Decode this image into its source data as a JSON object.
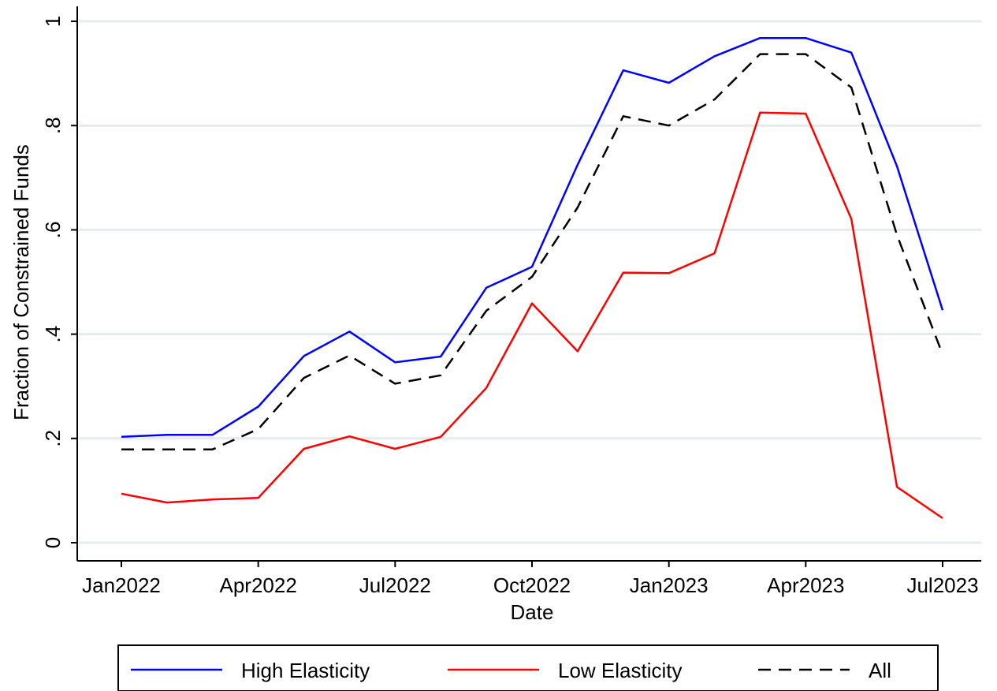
{
  "chart_data": {
    "type": "line",
    "xlabel": "Date",
    "ylabel": "Fraction of Constrained Funds",
    "x": [
      "Jan2022",
      "Feb2022",
      "Mar2022",
      "Apr2022",
      "May2022",
      "Jun2022",
      "Jul2022",
      "Aug2022",
      "Sep2022",
      "Oct2022",
      "Nov2022",
      "Dec2022",
      "Jan2023",
      "Feb2023",
      "Mar2023",
      "Apr2023",
      "May2023",
      "Jun2023",
      "Jul2023"
    ],
    "x_tick_labels": [
      "Jan2022",
      "Apr2022",
      "Jul2022",
      "Oct2022",
      "Jan2023",
      "Apr2023",
      "Jul2023"
    ],
    "y_tick_labels": [
      "0",
      ".2",
      ".4",
      ".6",
      ".8",
      "1"
    ],
    "ylim": [
      0,
      1
    ],
    "grid": true,
    "legend_position": "bottom",
    "series": [
      {
        "name": "High Elasticity",
        "color": "#0000ff",
        "dash": "solid",
        "values": [
          0.203,
          0.207,
          0.207,
          0.261,
          0.358,
          0.405,
          0.346,
          0.357,
          0.489,
          0.529,
          0.725,
          0.906,
          0.882,
          0.933,
          0.968,
          0.968,
          0.94,
          0.722,
          0.446
        ]
      },
      {
        "name": "Low Elasticity",
        "color": "#ff0000",
        "dash": "solid",
        "values": [
          0.094,
          0.077,
          0.083,
          0.086,
          0.18,
          0.204,
          0.18,
          0.203,
          0.297,
          0.459,
          0.367,
          0.518,
          0.517,
          0.555,
          0.825,
          0.823,
          0.621,
          0.107,
          0.047
        ]
      },
      {
        "name": "All",
        "color": "#000000",
        "dash": "dashed",
        "values": [
          0.179,
          0.179,
          0.179,
          0.218,
          0.316,
          0.359,
          0.305,
          0.321,
          0.445,
          0.51,
          0.643,
          0.818,
          0.8,
          0.85,
          0.937,
          0.937,
          0.873,
          0.59,
          0.361
        ]
      }
    ]
  }
}
